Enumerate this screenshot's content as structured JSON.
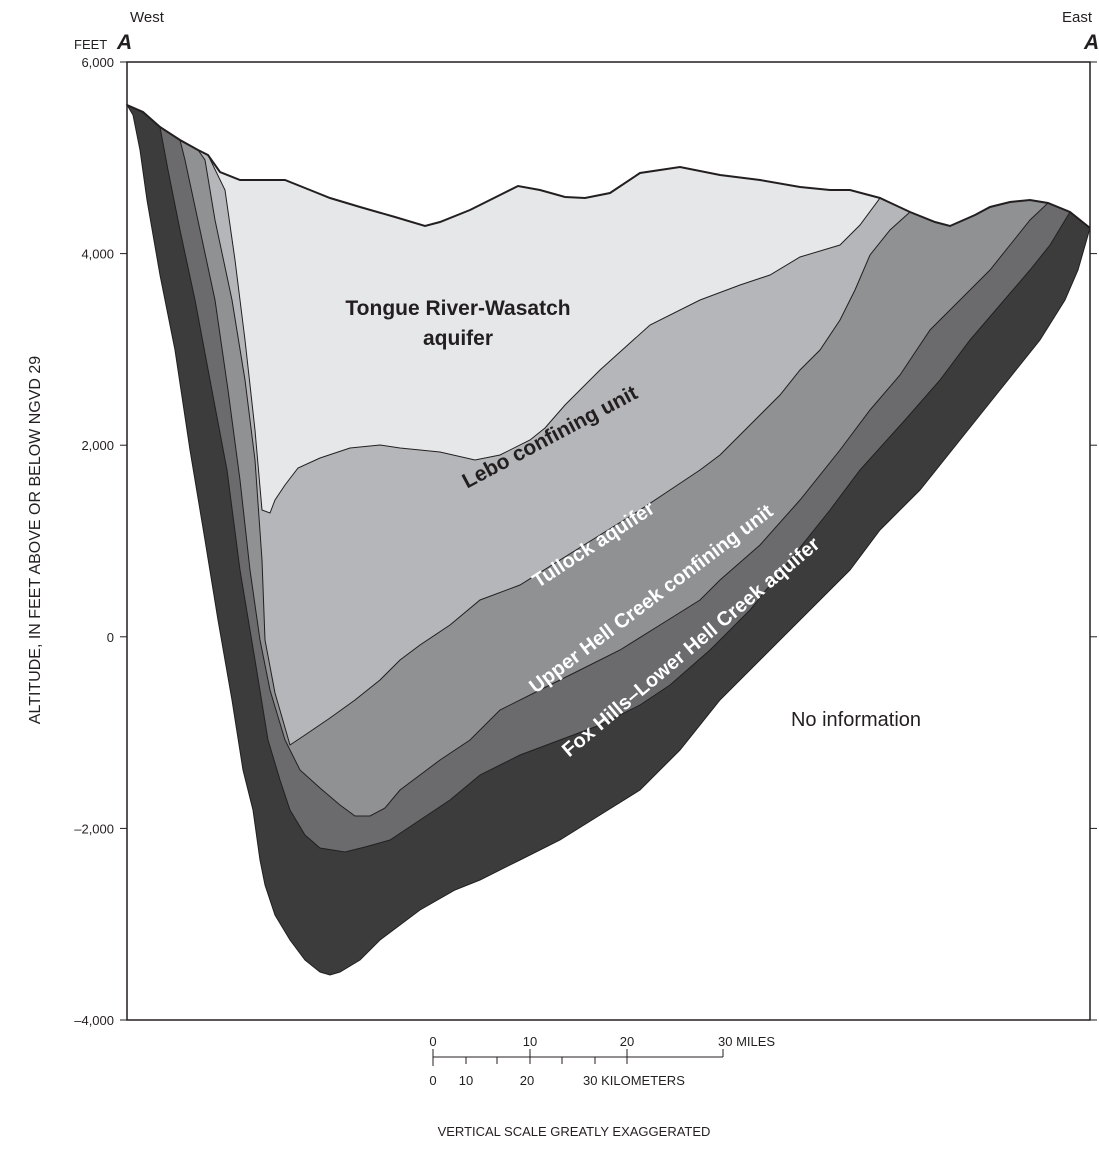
{
  "header": {
    "west": "West",
    "east": "East",
    "left_marker": "A",
    "right_marker": "A"
  },
  "axis": {
    "unit": "FEET",
    "title": "ALTITUDE, IN FEET ABOVE OR BELOW NGVD 29",
    "ticks": [
      "6,000",
      "4,000",
      "2,000",
      "0",
      "–2,000",
      "–4,000"
    ]
  },
  "units": {
    "tongue_river": [
      "Tongue River-Wasatch",
      "aquifer"
    ],
    "lebo": "Lebo confining unit",
    "tullock": "Tullock aquifer",
    "upper_hell_creek": "Upper Hell Creek confining unit",
    "fox_hills": "Fox Hills–Lower Hell Creek aquifer"
  },
  "no_information": "No information",
  "scale": {
    "miles": [
      "0",
      "10",
      "20",
      "30 MILES"
    ],
    "kilometers": [
      "0",
      "10",
      "20",
      "30 KILOMETERS"
    ],
    "note": "VERTICAL SCALE GREATLY EXAGGERATED"
  }
}
